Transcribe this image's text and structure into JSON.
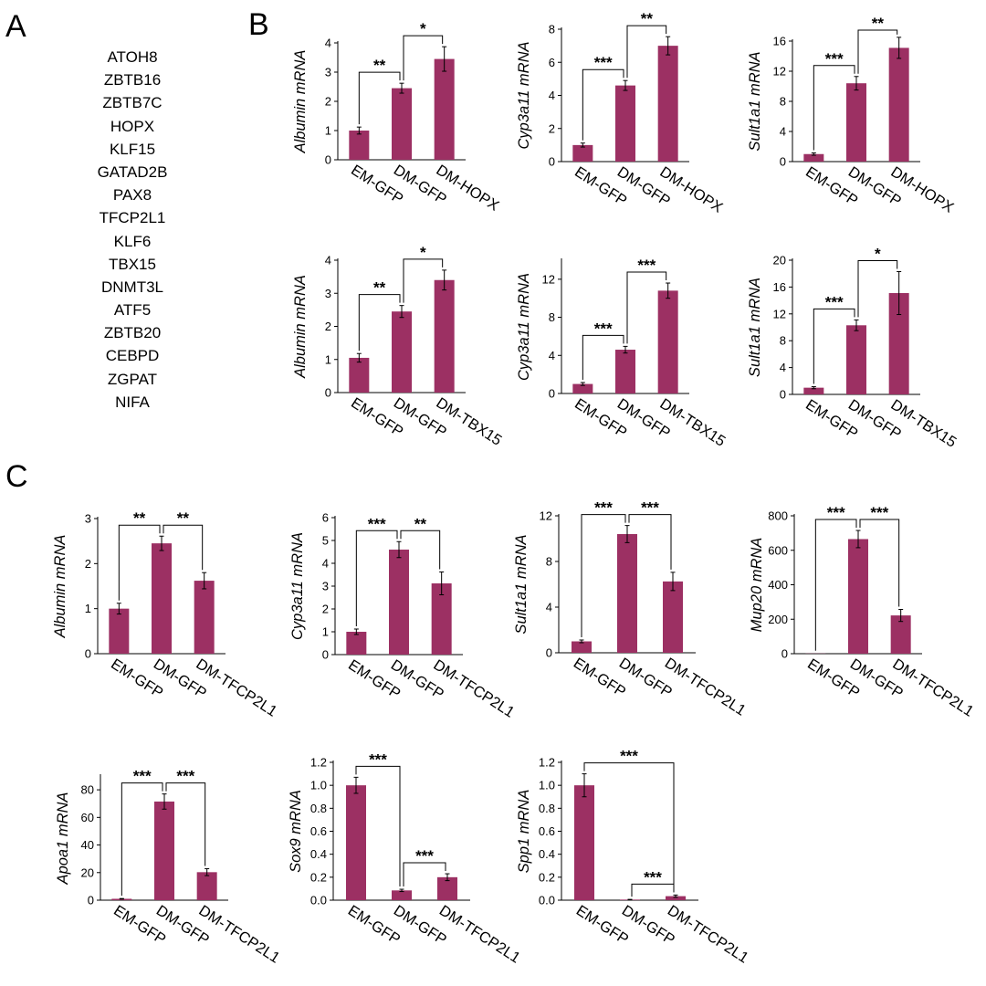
{
  "panels": {
    "a": "A",
    "b": "B",
    "c": "C"
  },
  "gene_list": [
    "ATOH8",
    "ZBTB16",
    "ZBTB7C",
    "HOPX",
    "KLF15",
    "GATAD2B",
    "PAX8",
    "TFCP2L1",
    "KLF6",
    "TBX15",
    "DNMT3L",
    "ATF5",
    "ZBTB20",
    "CEBPD",
    "ZGPAT",
    "NIFA"
  ],
  "colors": {
    "bar": "#9c3063",
    "axis": "#000000"
  },
  "chart_data": [
    {
      "id": "b1",
      "type": "bar",
      "ylabel": "Albumin mRNA",
      "categories": [
        "EM-GFP",
        "DM-GFP",
        "DM-HOPX"
      ],
      "values": [
        1.0,
        2.45,
        3.45
      ],
      "errors": [
        0.12,
        0.17,
        0.42
      ],
      "ylim": [
        0,
        4
      ],
      "yticks": [
        "0",
        "1",
        "2",
        "3",
        "4"
      ],
      "significance": [
        {
          "pair": [
            0,
            1
          ],
          "label": "**"
        },
        {
          "pair": [
            1,
            2
          ],
          "label": "*"
        }
      ]
    },
    {
      "id": "b2",
      "type": "bar",
      "ylabel": "Cyp3a11 mRNA",
      "categories": [
        "EM-GFP",
        "DM-GFP",
        "DM-HOPX"
      ],
      "values": [
        1.0,
        4.6,
        7.0
      ],
      "errors": [
        0.12,
        0.3,
        0.55
      ],
      "ylim": [
        0,
        8
      ],
      "yticks": [
        "0",
        "2",
        "4",
        "6",
        "8"
      ],
      "significance": [
        {
          "pair": [
            0,
            1
          ],
          "label": "***"
        },
        {
          "pair": [
            1,
            2
          ],
          "label": "**"
        }
      ]
    },
    {
      "id": "b3",
      "type": "bar",
      "ylabel": "Sult1a1 mRNA",
      "categories": [
        "EM-GFP",
        "DM-GFP",
        "DM-HOPX"
      ],
      "values": [
        1.0,
        10.4,
        15.1
      ],
      "errors": [
        0.15,
        0.9,
        1.4
      ],
      "ylim": [
        0,
        16
      ],
      "yticks": [
        "0",
        "4",
        "8",
        "12",
        "16"
      ],
      "significance": [
        {
          "pair": [
            0,
            1
          ],
          "label": "***"
        },
        {
          "pair": [
            1,
            2
          ],
          "label": "**"
        }
      ]
    },
    {
      "id": "b4",
      "type": "bar",
      "ylabel": "Albumin mRNA",
      "categories": [
        "EM-GFP",
        "DM-GFP",
        "DM-TBX15"
      ],
      "values": [
        1.05,
        2.45,
        3.4
      ],
      "errors": [
        0.13,
        0.18,
        0.3
      ],
      "ylim": [
        0,
        4
      ],
      "yticks": [
        "0",
        "1",
        "2",
        "3",
        "4"
      ],
      "significance": [
        {
          "pair": [
            0,
            1
          ],
          "label": "**"
        },
        {
          "pair": [
            1,
            2
          ],
          "label": "*"
        }
      ]
    },
    {
      "id": "b5",
      "type": "bar",
      "ylabel": "Cyp3a11 mRNA",
      "categories": [
        "EM-GFP",
        "DM-GFP",
        "DM-TBX15"
      ],
      "values": [
        1.0,
        4.6,
        10.8
      ],
      "errors": [
        0.15,
        0.35,
        0.8
      ],
      "ylim": [
        0,
        14
      ],
      "yticks": [
        "0",
        "4",
        "8",
        "12"
      ],
      "significance": [
        {
          "pair": [
            0,
            1
          ],
          "label": "***"
        },
        {
          "pair": [
            1,
            2
          ],
          "label": "***"
        }
      ]
    },
    {
      "id": "b6",
      "type": "bar",
      "ylabel": "Sult1a1 mRNA",
      "categories": [
        "EM-GFP",
        "DM-GFP",
        "DM-TBX15"
      ],
      "values": [
        1.0,
        10.3,
        15.1
      ],
      "errors": [
        0.15,
        0.8,
        3.2
      ],
      "ylim": [
        0,
        20
      ],
      "yticks": [
        "0",
        "4",
        "8",
        "12",
        "16",
        "20"
      ],
      "significance": [
        {
          "pair": [
            0,
            1
          ],
          "label": "***"
        },
        {
          "pair": [
            1,
            2
          ],
          "label": "*"
        }
      ]
    },
    {
      "id": "c1",
      "type": "bar",
      "ylabel": "Albumin mRNA",
      "categories": [
        "EM-GFP",
        "DM-GFP",
        "DM-TFCP2L1"
      ],
      "values": [
        1.0,
        2.45,
        1.62
      ],
      "errors": [
        0.12,
        0.16,
        0.18
      ],
      "ylim": [
        0,
        3
      ],
      "yticks": [
        "0",
        "1",
        "2",
        "3"
      ],
      "significance": [
        {
          "pair": [
            0,
            1
          ],
          "label": "**"
        },
        {
          "pair": [
            1,
            2
          ],
          "label": "**"
        }
      ]
    },
    {
      "id": "c2",
      "type": "bar",
      "ylabel": "Cyp3a11 mRNA",
      "categories": [
        "EM-GFP",
        "DM-GFP",
        "DM-TFCP2L1"
      ],
      "values": [
        1.0,
        4.6,
        3.12
      ],
      "errors": [
        0.12,
        0.35,
        0.5
      ],
      "ylim": [
        0,
        6
      ],
      "yticks": [
        "0",
        "1",
        "2",
        "3",
        "4",
        "5",
        "6"
      ],
      "significance": [
        {
          "pair": [
            0,
            1
          ],
          "label": "***"
        },
        {
          "pair": [
            1,
            2
          ],
          "label": "**"
        }
      ]
    },
    {
      "id": "c3",
      "type": "bar",
      "ylabel": "Sult1a1 mRNA",
      "categories": [
        "EM-GFP",
        "DM-GFP",
        "DM-TFCP2L1"
      ],
      "values": [
        1.0,
        10.4,
        6.25
      ],
      "errors": [
        0.12,
        0.75,
        0.8
      ],
      "ylim": [
        0,
        12
      ],
      "yticks": [
        "0",
        "4",
        "8",
        "12"
      ],
      "significance": [
        {
          "pair": [
            0,
            1
          ],
          "label": "***"
        },
        {
          "pair": [
            1,
            2
          ],
          "label": "***"
        }
      ]
    },
    {
      "id": "c4",
      "type": "bar",
      "ylabel": "Mup20 mRNA",
      "categories": [
        "EM-GFP",
        "DM-GFP",
        "DM-TFCP2L1"
      ],
      "values": [
        1,
        665,
        222
      ],
      "errors": [
        0,
        50,
        35
      ],
      "ylim": [
        0,
        800
      ],
      "yticks": [
        "0",
        "200",
        "400",
        "600",
        "800"
      ],
      "significance": [
        {
          "pair": [
            0,
            1
          ],
          "label": "***"
        },
        {
          "pair": [
            1,
            2
          ],
          "label": "***"
        }
      ]
    },
    {
      "id": "c5",
      "type": "bar",
      "ylabel": "Apoa1 mRNA",
      "categories": [
        "EM-GFP",
        "DM-GFP",
        "DM-TFCP2L1"
      ],
      "values": [
        1.0,
        71.5,
        20.3
      ],
      "errors": [
        0.2,
        5.5,
        2.5
      ],
      "ylim": [
        0,
        90
      ],
      "yticks": [
        "0",
        "20",
        "40",
        "60",
        "80"
      ],
      "significance": [
        {
          "pair": [
            0,
            1
          ],
          "label": "***"
        },
        {
          "pair": [
            1,
            2
          ],
          "label": "***"
        }
      ]
    },
    {
      "id": "c6",
      "type": "bar",
      "ylabel": "Sox9 mRNA",
      "categories": [
        "EM-GFP",
        "DM-GFP",
        "DM-TFCP2L1"
      ],
      "values": [
        1.0,
        0.085,
        0.2
      ],
      "errors": [
        0.07,
        0.01,
        0.03
      ],
      "ylim": [
        0,
        1.2
      ],
      "yticks": [
        "0.0",
        "0.2",
        "0.4",
        "0.6",
        "0.8",
        "1.0",
        "1.2"
      ],
      "significance": [
        {
          "pair": [
            0,
            1
          ],
          "label": "***"
        },
        {
          "pair": [
            1,
            2
          ],
          "label": "***"
        }
      ]
    },
    {
      "id": "c7",
      "type": "bar",
      "ylabel": "Spp1 mRNA",
      "categories": [
        "EM-GFP",
        "DM-GFP",
        "DM-TFCP2L1"
      ],
      "values": [
        1.0,
        0.005,
        0.035
      ],
      "errors": [
        0.1,
        0.002,
        0.01
      ],
      "ylim": [
        0,
        1.2
      ],
      "yticks": [
        "0.0",
        "0.2",
        "0.4",
        "0.6",
        "0.8",
        "1.0",
        "1.2"
      ],
      "significance": [
        {
          "pair": [
            0,
            2
          ],
          "label": "***"
        },
        {
          "pair": [
            1,
            2
          ],
          "label": "***"
        }
      ]
    }
  ]
}
